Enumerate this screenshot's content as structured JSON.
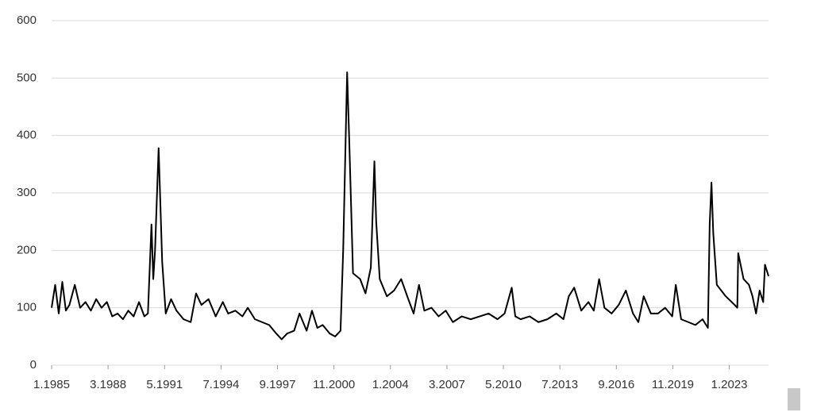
{
  "chart_data": {
    "type": "line",
    "x": [
      1985.0,
      1985.2,
      1985.4,
      1985.6,
      1985.8,
      1986.0,
      1986.3,
      1986.6,
      1986.9,
      1987.2,
      1987.5,
      1987.8,
      1988.1,
      1988.4,
      1988.7,
      1989.0,
      1989.3,
      1989.6,
      1989.9,
      1990.2,
      1990.4,
      1990.6,
      1990.7,
      1990.8,
      1991.0,
      1991.1,
      1991.2,
      1991.4,
      1991.7,
      1992.0,
      1992.4,
      1992.8,
      1993.1,
      1993.4,
      1993.8,
      1994.2,
      1994.6,
      1994.9,
      1995.3,
      1995.7,
      1996.0,
      1996.4,
      1996.8,
      1997.2,
      1997.6,
      1997.9,
      1998.2,
      1998.6,
      1998.9,
      1999.3,
      1999.6,
      1999.9,
      2000.2,
      2000.6,
      2000.9,
      2001.2,
      2001.35,
      2001.57,
      2001.7,
      2001.9,
      2002.3,
      2002.6,
      2002.9,
      2003.1,
      2003.2,
      2003.4,
      2003.8,
      2004.2,
      2004.6,
      2005.0,
      2005.3,
      2005.6,
      2005.9,
      2006.3,
      2006.7,
      2007.1,
      2007.5,
      2008.0,
      2008.5,
      2009.0,
      2009.5,
      2010.0,
      2010.4,
      2010.8,
      2011.0,
      2011.3,
      2011.8,
      2012.3,
      2012.8,
      2013.3,
      2013.7,
      2014.0,
      2014.3,
      2014.7,
      2015.1,
      2015.4,
      2015.7,
      2016.0,
      2016.4,
      2016.8,
      2017.2,
      2017.6,
      2017.9,
      2018.2,
      2018.6,
      2019.0,
      2019.4,
      2019.8,
      2020.0,
      2020.3,
      2020.7,
      2021.1,
      2021.5,
      2021.8,
      2021.9,
      2022.0,
      2022.1,
      2022.3,
      2022.8,
      2023.3,
      2023.45,
      2023.5,
      2023.8,
      2024.1,
      2024.3,
      2024.5,
      2024.7,
      2024.9,
      2025.0,
      2025.2
    ],
    "series": [
      {
        "color": "#000000",
        "values": [
          100,
          140,
          90,
          145,
          95,
          105,
          140,
          100,
          110,
          95,
          115,
          100,
          110,
          85,
          90,
          80,
          95,
          85,
          110,
          85,
          90,
          245,
          150,
          200,
          378,
          280,
          180,
          90,
          115,
          95,
          80,
          75,
          125,
          105,
          115,
          85,
          110,
          90,
          95,
          85,
          100,
          80,
          75,
          70,
          55,
          45,
          55,
          60,
          90,
          60,
          95,
          65,
          70,
          55,
          50,
          60,
          200,
          510,
          380,
          160,
          150,
          125,
          170,
          355,
          250,
          150,
          120,
          130,
          150,
          115,
          90,
          140,
          95,
          100,
          85,
          95,
          75,
          85,
          80,
          85,
          90,
          80,
          90,
          135,
          85,
          80,
          85,
          75,
          80,
          90,
          80,
          120,
          135,
          95,
          110,
          95,
          150,
          100,
          90,
          105,
          130,
          90,
          75,
          120,
          90,
          90,
          100,
          85,
          140,
          80,
          75,
          70,
          80,
          65,
          245,
          318,
          230,
          140,
          120,
          105,
          100,
          195,
          150,
          140,
          120,
          90,
          130,
          110,
          175,
          155
        ]
      }
    ],
    "xlim": [
      1985.0,
      2025.2
    ],
    "xticks": [
      {
        "value": 1985.0,
        "label": "1.1985"
      },
      {
        "value": 1988.1667,
        "label": "3.1988"
      },
      {
        "value": 1991.3333,
        "label": "5.1991"
      },
      {
        "value": 1994.5,
        "label": "7.1994"
      },
      {
        "value": 1997.6667,
        "label": "9.1997"
      },
      {
        "value": 2000.8333,
        "label": "11.2000"
      },
      {
        "value": 2004.0,
        "label": "1.2004"
      },
      {
        "value": 2007.1667,
        "label": "3.2007"
      },
      {
        "value": 2010.3333,
        "label": "5.2010"
      },
      {
        "value": 2013.5,
        "label": "7.2013"
      },
      {
        "value": 2016.6667,
        "label": "9.2016"
      },
      {
        "value": 2019.8333,
        "label": "11.2019"
      },
      {
        "value": 2023.0,
        "label": "1.2023"
      }
    ],
    "ylim": [
      0,
      600
    ],
    "yticks": [
      0,
      100,
      200,
      300,
      400,
      500,
      600
    ],
    "grid": true
  }
}
